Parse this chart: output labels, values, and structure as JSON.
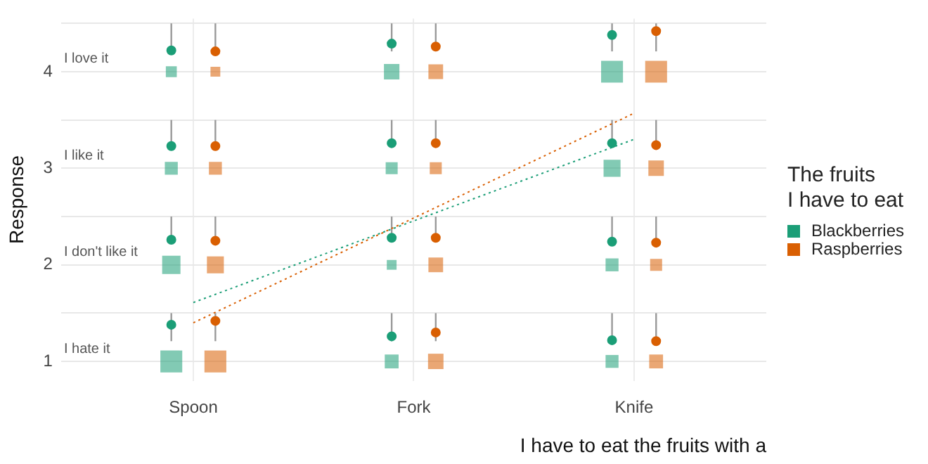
{
  "chart_data": {
    "type": "scatter",
    "categories": [
      "Spoon",
      "Fork",
      "Knife"
    ],
    "xlabel": "I have to eat the fruits with a",
    "ylabel": "Response",
    "legend_title": "The fruits\nI have to eat",
    "legend": "right",
    "grid": true,
    "ylim": [
      0.8,
      4.55
    ],
    "yticks": [
      1,
      {
        "value": 1.5,
        "label": null
      },
      2,
      {
        "value": 2.5,
        "label": null
      },
      3,
      {
        "value": 3.5,
        "label": null
      },
      4,
      {
        "value": 4.5,
        "label": null
      }
    ],
    "annotations": [
      "I hate it",
      "I don't like it",
      "I like it",
      "I love it"
    ],
    "series": [
      {
        "type": "bubble",
        "name": "Blackberries",
        "color": "#1b9e77",
        "x": [
          "Spoon",
          "Spoon",
          "Spoon",
          "Spoon",
          "Fork",
          "Fork",
          "Fork",
          "Fork",
          "Knife",
          "Knife",
          "Knife",
          "Knife"
        ],
        "values": [
          1,
          2,
          3,
          4,
          1,
          2,
          3,
          4,
          1,
          2,
          3,
          4
        ],
        "sizes": [
          1,
          0.7,
          0.35,
          0.25,
          0.4,
          0.2,
          0.3,
          0.5,
          0.35,
          0.35,
          0.6,
          1
        ]
      },
      {
        "type": "bubble",
        "name": "Raspberries",
        "color": "#d95f02",
        "x": [
          "Spoon",
          "Spoon",
          "Spoon",
          "Spoon",
          "Fork",
          "Fork",
          "Fork",
          "Fork",
          "Knife",
          "Knife",
          "Knife",
          "Knife"
        ],
        "values": [
          1,
          2,
          3,
          4,
          1,
          2,
          3,
          4,
          1,
          2,
          3,
          4
        ],
        "sizes": [
          1,
          0.6,
          0.35,
          0.2,
          0.5,
          0.45,
          0.3,
          0.45,
          0.4,
          0.3,
          0.5,
          1
        ]
      },
      {
        "color": "#1b9e77",
        "marker": "circle",
        "x": [
          "Spoon",
          "Spoon",
          "Spoon",
          "Spoon",
          "Fork",
          "Fork",
          "Fork",
          "Fork",
          "Knife",
          "Knife",
          "Knife",
          "Knife"
        ],
        "values": [
          1.38,
          2.26,
          3.23,
          4.22,
          1.26,
          2.28,
          3.26,
          4.29,
          1.22,
          2.24,
          3.26,
          4.38
        ],
        "errors": [
          [
            1.21,
            1.5
          ],
          [
            2.23,
            2.5
          ],
          [
            3.2,
            3.5
          ],
          [
            4.18,
            4.5
          ],
          [
            1.21,
            1.5
          ],
          [
            2.24,
            2.5
          ],
          [
            3.22,
            3.5
          ],
          [
            4.21,
            4.5
          ],
          [
            1.2,
            1.5
          ],
          [
            2.2,
            2.5
          ],
          [
            3.22,
            3.5
          ],
          [
            4.21,
            4.5
          ]
        ]
      },
      {
        "color": "#d95f02",
        "marker": "circle",
        "x": [
          "Spoon",
          "Spoon",
          "Spoon",
          "Spoon",
          "Fork",
          "Fork",
          "Fork",
          "Fork",
          "Knife",
          "Knife",
          "Knife",
          "Knife"
        ],
        "values": [
          1.42,
          2.25,
          3.23,
          4.21,
          1.3,
          2.28,
          3.26,
          4.26,
          1.21,
          2.23,
          3.24,
          4.42
        ],
        "errors": [
          [
            1.21,
            1.5
          ],
          [
            2.22,
            2.5
          ],
          [
            3.2,
            3.5
          ],
          [
            4.18,
            4.5
          ],
          [
            1.21,
            1.5
          ],
          [
            2.24,
            2.5
          ],
          [
            3.22,
            3.5
          ],
          [
            4.21,
            4.5
          ],
          [
            1.2,
            1.5
          ],
          [
            2.2,
            2.5
          ],
          [
            3.2,
            3.5
          ],
          [
            4.21,
            4.5
          ]
        ]
      },
      {
        "type": "line",
        "color": "#1b9e77",
        "line_style": "dotted",
        "x": [
          "Spoon",
          "Knife"
        ],
        "values": [
          1.61,
          3.3
        ]
      },
      {
        "type": "line",
        "color": "#d95f02",
        "line_style": "dotted",
        "x": [
          "Spoon",
          "Knife"
        ],
        "values": [
          1.4,
          3.57
        ]
      }
    ]
  }
}
